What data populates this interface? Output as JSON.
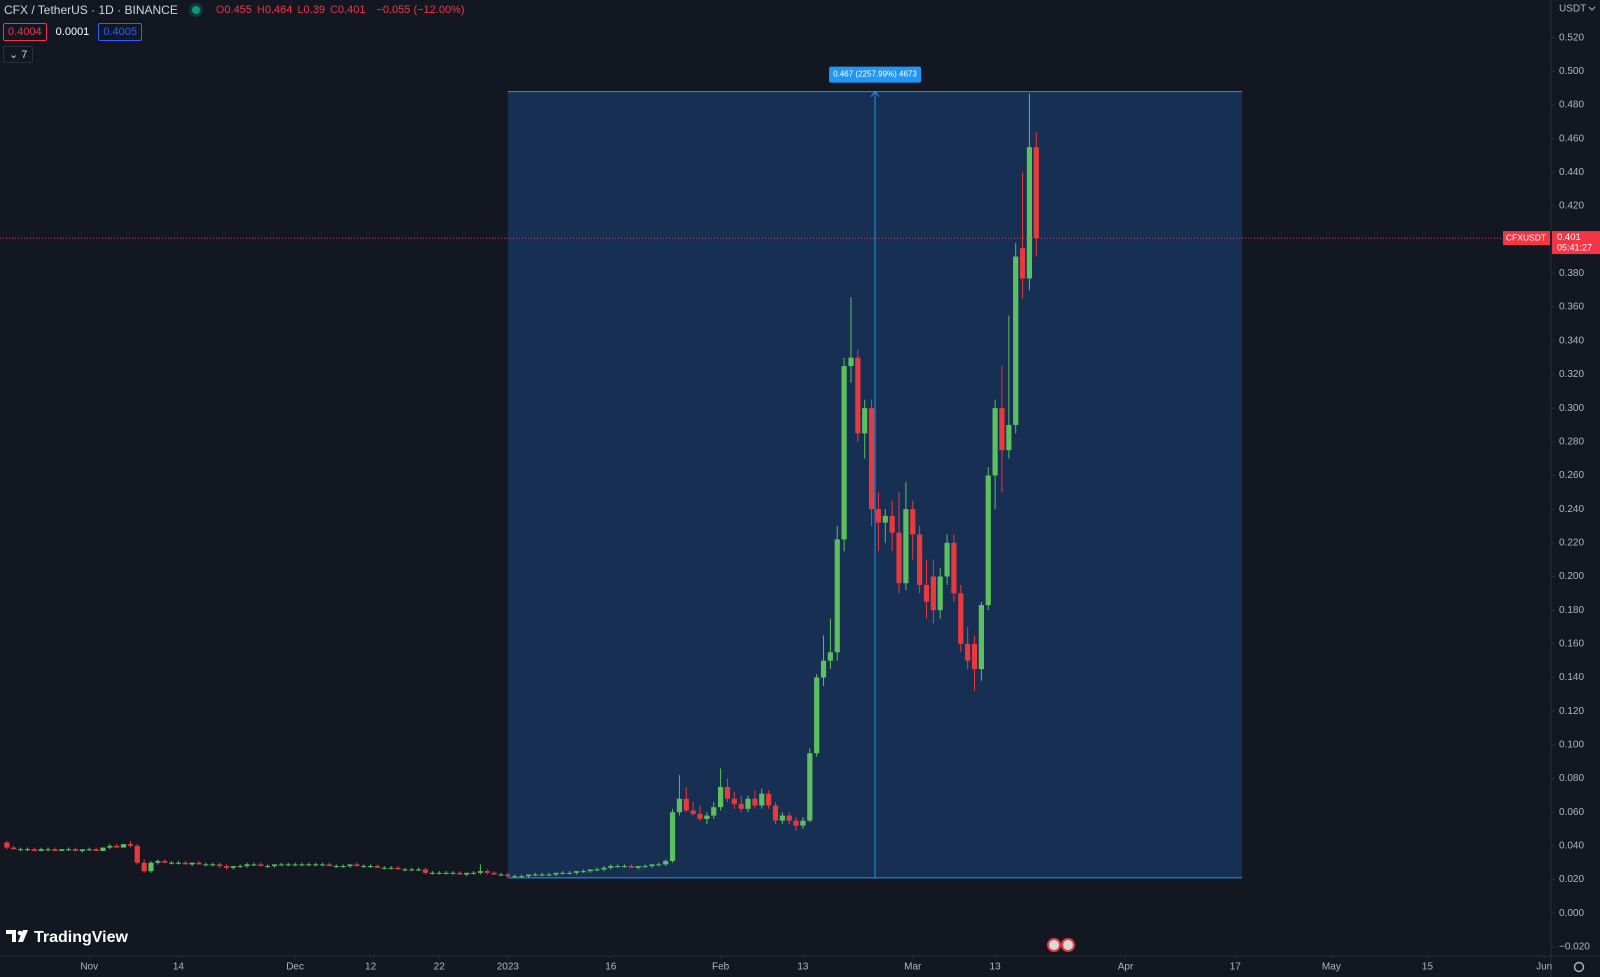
{
  "chart_data": {
    "type": "candlestick",
    "symbol": "CFX / TetherUS · 1D · BINANCE",
    "legend": [
      {
        "label": "O",
        "value": 0.455
      },
      {
        "label": "H",
        "value": 0.464
      },
      {
        "label": "L",
        "value": 0.39
      },
      {
        "label": "C",
        "value": 0.401
      }
    ],
    "change": "−0.055 (−12.00%)",
    "bid": 0.4004,
    "spread": 0.0001,
    "ask": 0.4005,
    "indicators_count": 7,
    "currency": "USDT",
    "logo": "TradingView",
    "up_color": "#5cbf60",
    "down_color": "#e8393f",
    "grid": false,
    "ylim": [
      -0.0254,
      0.5424
    ],
    "yticks": [
      {
        "value": -0.02,
        "label": "−0.020"
      },
      {
        "value": 0,
        "label": "0.000"
      },
      {
        "value": 0.02,
        "label": "0.020"
      },
      {
        "value": 0.04,
        "label": "0.040"
      },
      {
        "value": 0.06,
        "label": "0.060"
      },
      {
        "value": 0.08,
        "label": "0.080"
      },
      {
        "value": 0.1,
        "label": "0.100"
      },
      {
        "value": 0.12,
        "label": "0.120"
      },
      {
        "value": 0.14,
        "label": "0.140"
      },
      {
        "value": 0.16,
        "label": "0.160"
      },
      {
        "value": 0.18,
        "label": "0.180"
      },
      {
        "value": 0.2,
        "label": "0.200"
      },
      {
        "value": 0.22,
        "label": "0.220"
      },
      {
        "value": 0.24,
        "label": "0.240"
      },
      {
        "value": 0.26,
        "label": "0.260"
      },
      {
        "value": 0.28,
        "label": "0.280"
      },
      {
        "value": 0.3,
        "label": "0.300"
      },
      {
        "value": 0.32,
        "label": "0.320"
      },
      {
        "value": 0.34,
        "label": "0.340"
      },
      {
        "value": 0.36,
        "label": "0.360"
      },
      {
        "value": 0.38,
        "label": "0.380"
      },
      {
        "value": 0.4,
        "label": "0.400"
      },
      {
        "value": 0.42,
        "label": "0.420"
      },
      {
        "value": 0.44,
        "label": "0.440"
      },
      {
        "value": 0.46,
        "label": "0.460"
      },
      {
        "value": 0.48,
        "label": "0.480"
      },
      {
        "value": 0.5,
        "label": "0.500"
      },
      {
        "value": 0.52,
        "label": "0.520"
      }
    ],
    "xlim": [
      "2022-10-19",
      "2023-06-02"
    ],
    "xticks": [
      {
        "value": "2022-11-01",
        "label": "Nov"
      },
      {
        "value": "2022-11-14",
        "label": "14"
      },
      {
        "value": "2022-12-01",
        "label": "Dec"
      },
      {
        "value": "2022-12-12",
        "label": "12"
      },
      {
        "value": "2022-12-22",
        "label": "22"
      },
      {
        "value": "2023-01-01",
        "label": "2023"
      },
      {
        "value": "2023-01-16",
        "label": "16"
      },
      {
        "value": "2023-02-01",
        "label": "Feb"
      },
      {
        "value": "2023-02-13",
        "label": "13"
      },
      {
        "value": "2023-03-01",
        "label": "Mar"
      },
      {
        "value": "2023-03-13",
        "label": "13"
      },
      {
        "value": "2023-04-01",
        "label": "Apr"
      },
      {
        "value": "2023-04-17",
        "label": "17"
      },
      {
        "value": "2023-05-01",
        "label": "May"
      },
      {
        "value": "2023-05-15",
        "label": "15"
      },
      {
        "value": "2023-06-01",
        "label": "Jun"
      }
    ],
    "measure": {
      "label": "0.467 (2257.99%) 4673",
      "from": "2023-01-01",
      "to": "2023-04-18",
      "low": 0.021,
      "high": 0.488
    },
    "last_price": {
      "label": "CFXUSDT",
      "value": 0.401,
      "countdown": "05:41:27"
    },
    "x": [
      "2022-10-20",
      "2022-10-21",
      "2022-10-22",
      "2022-10-23",
      "2022-10-24",
      "2022-10-25",
      "2022-10-26",
      "2022-10-27",
      "2022-10-28",
      "2022-10-29",
      "2022-10-30",
      "2022-10-31",
      "2022-11-01",
      "2022-11-02",
      "2022-11-03",
      "2022-11-04",
      "2022-11-05",
      "2022-11-06",
      "2022-11-07",
      "2022-11-08",
      "2022-11-09",
      "2022-11-10",
      "2022-11-11",
      "2022-11-12",
      "2022-11-13",
      "2022-11-14",
      "2022-11-15",
      "2022-11-16",
      "2022-11-17",
      "2022-11-18",
      "2022-11-19",
      "2022-11-20",
      "2022-11-21",
      "2022-11-22",
      "2022-11-23",
      "2022-11-24",
      "2022-11-25",
      "2022-11-26",
      "2022-11-27",
      "2022-11-28",
      "2022-11-29",
      "2022-11-30",
      "2022-12-01",
      "2022-12-02",
      "2022-12-03",
      "2022-12-04",
      "2022-12-05",
      "2022-12-06",
      "2022-12-07",
      "2022-12-08",
      "2022-12-09",
      "2022-12-10",
      "2022-12-11",
      "2022-12-12",
      "2022-12-13",
      "2022-12-14",
      "2022-12-15",
      "2022-12-16",
      "2022-12-17",
      "2022-12-18",
      "2022-12-19",
      "2022-12-20",
      "2022-12-21",
      "2022-12-22",
      "2022-12-23",
      "2022-12-24",
      "2022-12-25",
      "2022-12-26",
      "2022-12-27",
      "2022-12-28",
      "2022-12-29",
      "2022-12-30",
      "2022-12-31",
      "2023-01-01",
      "2023-01-02",
      "2023-01-03",
      "2023-01-04",
      "2023-01-05",
      "2023-01-06",
      "2023-01-07",
      "2023-01-08",
      "2023-01-09",
      "2023-01-10",
      "2023-01-11",
      "2023-01-12",
      "2023-01-13",
      "2023-01-14",
      "2023-01-15",
      "2023-01-16",
      "2023-01-17",
      "2023-01-18",
      "2023-01-19",
      "2023-01-20",
      "2023-01-21",
      "2023-01-22",
      "2023-01-23",
      "2023-01-24",
      "2023-01-25",
      "2023-01-26",
      "2023-01-27",
      "2023-01-28",
      "2023-01-29",
      "2023-01-30",
      "2023-01-31",
      "2023-02-01",
      "2023-02-02",
      "2023-02-03",
      "2023-02-04",
      "2023-02-05",
      "2023-02-06",
      "2023-02-07",
      "2023-02-08",
      "2023-02-09",
      "2023-02-10",
      "2023-02-11",
      "2023-02-12",
      "2023-02-13",
      "2023-02-14",
      "2023-02-15",
      "2023-02-16",
      "2023-02-17",
      "2023-02-18",
      "2023-02-19",
      "2023-02-20",
      "2023-02-21",
      "2023-02-22",
      "2023-02-23",
      "2023-02-24",
      "2023-02-25",
      "2023-02-26",
      "2023-02-27",
      "2023-02-28",
      "2023-03-01",
      "2023-03-02",
      "2023-03-03",
      "2023-03-04",
      "2023-03-05",
      "2023-03-06",
      "2023-03-07",
      "2023-03-08",
      "2023-03-09",
      "2023-03-10",
      "2023-03-11",
      "2023-03-12",
      "2023-03-13",
      "2023-03-14",
      "2023-03-15",
      "2023-03-16",
      "2023-03-17",
      "2023-03-18",
      "2023-03-19"
    ],
    "values": [
      [
        0.042,
        0.043,
        0.038,
        0.039
      ],
      [
        0.039,
        0.04,
        0.038,
        0.038
      ],
      [
        0.038,
        0.039,
        0.037,
        0.038
      ],
      [
        0.038,
        0.039,
        0.037,
        0.038
      ],
      [
        0.038,
        0.039,
        0.037,
        0.037
      ],
      [
        0.037,
        0.039,
        0.037,
        0.038
      ],
      [
        0.038,
        0.039,
        0.037,
        0.038
      ],
      [
        0.038,
        0.039,
        0.037,
        0.037
      ],
      [
        0.037,
        0.038,
        0.037,
        0.038
      ],
      [
        0.038,
        0.039,
        0.037,
        0.038
      ],
      [
        0.038,
        0.039,
        0.037,
        0.037
      ],
      [
        0.037,
        0.038,
        0.036,
        0.038
      ],
      [
        0.038,
        0.039,
        0.037,
        0.038
      ],
      [
        0.038,
        0.039,
        0.037,
        0.037
      ],
      [
        0.037,
        0.039,
        0.037,
        0.039
      ],
      [
        0.039,
        0.041,
        0.038,
        0.04
      ],
      [
        0.04,
        0.041,
        0.039,
        0.039
      ],
      [
        0.039,
        0.041,
        0.039,
        0.041
      ],
      [
        0.041,
        0.043,
        0.039,
        0.04
      ],
      [
        0.04,
        0.041,
        0.029,
        0.03
      ],
      [
        0.03,
        0.032,
        0.024,
        0.025
      ],
      [
        0.025,
        0.031,
        0.024,
        0.03
      ],
      [
        0.03,
        0.032,
        0.029,
        0.031
      ],
      [
        0.031,
        0.032,
        0.03,
        0.03
      ],
      [
        0.03,
        0.031,
        0.029,
        0.03
      ],
      [
        0.03,
        0.031,
        0.029,
        0.03
      ],
      [
        0.03,
        0.031,
        0.029,
        0.029
      ],
      [
        0.029,
        0.03,
        0.028,
        0.03
      ],
      [
        0.03,
        0.031,
        0.029,
        0.029
      ],
      [
        0.029,
        0.03,
        0.028,
        0.029
      ],
      [
        0.029,
        0.03,
        0.028,
        0.029
      ],
      [
        0.029,
        0.03,
        0.027,
        0.028
      ],
      [
        0.028,
        0.029,
        0.026,
        0.027
      ],
      [
        0.027,
        0.028,
        0.026,
        0.028
      ],
      [
        0.028,
        0.029,
        0.027,
        0.028
      ],
      [
        0.028,
        0.03,
        0.027,
        0.029
      ],
      [
        0.029,
        0.03,
        0.028,
        0.029
      ],
      [
        0.029,
        0.03,
        0.028,
        0.028
      ],
      [
        0.028,
        0.029,
        0.027,
        0.028
      ],
      [
        0.028,
        0.029,
        0.027,
        0.029
      ],
      [
        0.029,
        0.03,
        0.028,
        0.029
      ],
      [
        0.029,
        0.03,
        0.028,
        0.029
      ],
      [
        0.029,
        0.03,
        0.028,
        0.029
      ],
      [
        0.029,
        0.03,
        0.028,
        0.029
      ],
      [
        0.029,
        0.03,
        0.028,
        0.029
      ],
      [
        0.029,
        0.03,
        0.028,
        0.029
      ],
      [
        0.029,
        0.03,
        0.028,
        0.029
      ],
      [
        0.029,
        0.03,
        0.028,
        0.028
      ],
      [
        0.028,
        0.029,
        0.027,
        0.028
      ],
      [
        0.028,
        0.029,
        0.027,
        0.028
      ],
      [
        0.028,
        0.029,
        0.027,
        0.029
      ],
      [
        0.029,
        0.03,
        0.028,
        0.028
      ],
      [
        0.028,
        0.029,
        0.027,
        0.028
      ],
      [
        0.028,
        0.029,
        0.027,
        0.028
      ],
      [
        0.028,
        0.029,
        0.027,
        0.027
      ],
      [
        0.027,
        0.028,
        0.026,
        0.027
      ],
      [
        0.027,
        0.028,
        0.026,
        0.027
      ],
      [
        0.027,
        0.028,
        0.026,
        0.026
      ],
      [
        0.026,
        0.027,
        0.025,
        0.026
      ],
      [
        0.026,
        0.027,
        0.025,
        0.026
      ],
      [
        0.026,
        0.027,
        0.025,
        0.026
      ],
      [
        0.026,
        0.027,
        0.023,
        0.024
      ],
      [
        0.024,
        0.025,
        0.023,
        0.024
      ],
      [
        0.024,
        0.025,
        0.023,
        0.024
      ],
      [
        0.024,
        0.025,
        0.023,
        0.024
      ],
      [
        0.024,
        0.025,
        0.023,
        0.024
      ],
      [
        0.024,
        0.025,
        0.023,
        0.023
      ],
      [
        0.023,
        0.024,
        0.022,
        0.024
      ],
      [
        0.024,
        0.025,
        0.023,
        0.024
      ],
      [
        0.024,
        0.029,
        0.023,
        0.025
      ],
      [
        0.025,
        0.026,
        0.023,
        0.024
      ],
      [
        0.024,
        0.025,
        0.023,
        0.023
      ],
      [
        0.023,
        0.024,
        0.022,
        0.023
      ],
      [
        0.023,
        0.024,
        0.021,
        0.022
      ],
      [
        0.022,
        0.023,
        0.021,
        0.022
      ],
      [
        0.022,
        0.023,
        0.021,
        0.022
      ],
      [
        0.022,
        0.023,
        0.021,
        0.023
      ],
      [
        0.023,
        0.024,
        0.022,
        0.023
      ],
      [
        0.023,
        0.024,
        0.022,
        0.023
      ],
      [
        0.023,
        0.024,
        0.022,
        0.023
      ],
      [
        0.023,
        0.024,
        0.022,
        0.024
      ],
      [
        0.024,
        0.025,
        0.023,
        0.024
      ],
      [
        0.024,
        0.025,
        0.023,
        0.024
      ],
      [
        0.024,
        0.025,
        0.023,
        0.025
      ],
      [
        0.025,
        0.026,
        0.024,
        0.025
      ],
      [
        0.025,
        0.026,
        0.024,
        0.026
      ],
      [
        0.026,
        0.027,
        0.025,
        0.026
      ],
      [
        0.026,
        0.028,
        0.025,
        0.027
      ],
      [
        0.027,
        0.029,
        0.026,
        0.028
      ],
      [
        0.028,
        0.029,
        0.027,
        0.028
      ],
      [
        0.028,
        0.029,
        0.027,
        0.028
      ],
      [
        0.028,
        0.029,
        0.027,
        0.027
      ],
      [
        0.027,
        0.028,
        0.026,
        0.028
      ],
      [
        0.028,
        0.029,
        0.027,
        0.028
      ],
      [
        0.028,
        0.029,
        0.027,
        0.029
      ],
      [
        0.029,
        0.03,
        0.028,
        0.029
      ],
      [
        0.029,
        0.032,
        0.028,
        0.031
      ],
      [
        0.031,
        0.062,
        0.03,
        0.06
      ],
      [
        0.06,
        0.082,
        0.058,
        0.068
      ],
      [
        0.068,
        0.075,
        0.06,
        0.061
      ],
      [
        0.061,
        0.066,
        0.058,
        0.059
      ],
      [
        0.059,
        0.064,
        0.055,
        0.056
      ],
      [
        0.056,
        0.06,
        0.053,
        0.058
      ],
      [
        0.058,
        0.066,
        0.056,
        0.063
      ],
      [
        0.063,
        0.086,
        0.061,
        0.075
      ],
      [
        0.075,
        0.08,
        0.066,
        0.068
      ],
      [
        0.068,
        0.072,
        0.062,
        0.065
      ],
      [
        0.065,
        0.07,
        0.06,
        0.062
      ],
      [
        0.062,
        0.07,
        0.06,
        0.068
      ],
      [
        0.068,
        0.073,
        0.062,
        0.064
      ],
      [
        0.064,
        0.074,
        0.062,
        0.071
      ],
      [
        0.071,
        0.073,
        0.062,
        0.064
      ],
      [
        0.064,
        0.066,
        0.053,
        0.055
      ],
      [
        0.055,
        0.06,
        0.053,
        0.058
      ],
      [
        0.058,
        0.06,
        0.053,
        0.055
      ],
      [
        0.055,
        0.057,
        0.049,
        0.052
      ],
      [
        0.052,
        0.057,
        0.05,
        0.055
      ],
      [
        0.055,
        0.098,
        0.054,
        0.095
      ],
      [
        0.095,
        0.142,
        0.093,
        0.14
      ],
      [
        0.14,
        0.165,
        0.135,
        0.15
      ],
      [
        0.15,
        0.175,
        0.145,
        0.155
      ],
      [
        0.155,
        0.23,
        0.15,
        0.222
      ],
      [
        0.222,
        0.33,
        0.215,
        0.325
      ],
      [
        0.325,
        0.366,
        0.315,
        0.33
      ],
      [
        0.33,
        0.335,
        0.28,
        0.285
      ],
      [
        0.285,
        0.305,
        0.27,
        0.3
      ],
      [
        0.3,
        0.305,
        0.23,
        0.24
      ],
      [
        0.24,
        0.25,
        0.215,
        0.232
      ],
      [
        0.232,
        0.24,
        0.22,
        0.236
      ],
      [
        0.236,
        0.245,
        0.215,
        0.226
      ],
      [
        0.226,
        0.25,
        0.19,
        0.196
      ],
      [
        0.196,
        0.256,
        0.192,
        0.24
      ],
      [
        0.24,
        0.245,
        0.21,
        0.225
      ],
      [
        0.225,
        0.23,
        0.19,
        0.195
      ],
      [
        0.195,
        0.21,
        0.175,
        0.185
      ],
      [
        0.2,
        0.21,
        0.172,
        0.18
      ],
      [
        0.18,
        0.205,
        0.175,
        0.2
      ],
      [
        0.2,
        0.225,
        0.195,
        0.22
      ],
      [
        0.22,
        0.225,
        0.185,
        0.19
      ],
      [
        0.19,
        0.195,
        0.155,
        0.16
      ],
      [
        0.16,
        0.17,
        0.145,
        0.15
      ],
      [
        0.16,
        0.165,
        0.132,
        0.145
      ],
      [
        0.145,
        0.185,
        0.138,
        0.183
      ],
      [
        0.183,
        0.265,
        0.18,
        0.26
      ],
      [
        0.26,
        0.305,
        0.24,
        0.3
      ],
      [
        0.3,
        0.325,
        0.25,
        0.275
      ],
      [
        0.275,
        0.355,
        0.27,
        0.29
      ],
      [
        0.29,
        0.398,
        0.285,
        0.39
      ],
      [
        0.395,
        0.44,
        0.365,
        0.377
      ],
      [
        0.377,
        0.487,
        0.37,
        0.455
      ],
      [
        0.455,
        0.464,
        0.39,
        0.401
      ]
    ]
  }
}
